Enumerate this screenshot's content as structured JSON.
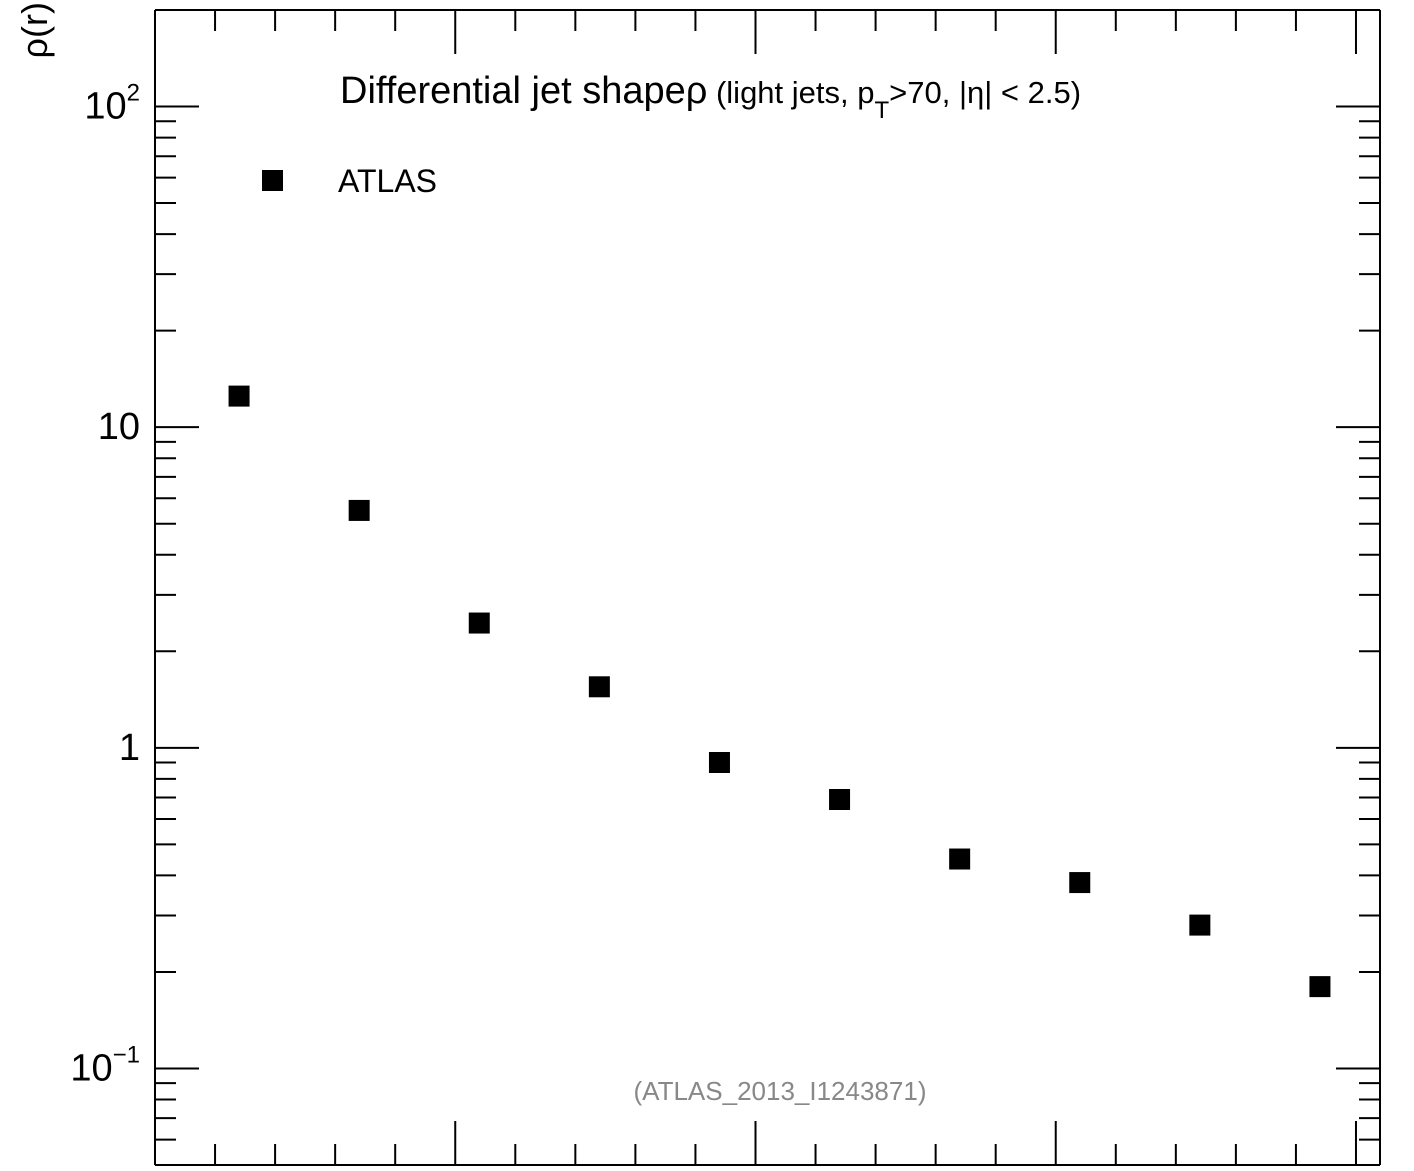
{
  "chart_data": {
    "type": "scatter",
    "title": {
      "main": "Differential jet shape",
      "rho": "ρ",
      "details_before": " (light jets, p",
      "details_sub": "T",
      "details_after": ">70, |η| < 2.5)"
    },
    "ylabel": "ρ(r)",
    "xlabel": "",
    "yscale": "log",
    "ylim": [
      0.05,
      200
    ],
    "xlim": [
      0,
      1.02
    ],
    "y_ticks": [
      {
        "value": 100,
        "base": "10",
        "exp": "2"
      },
      {
        "value": 10,
        "base": "10",
        "exp": ""
      },
      {
        "value": 1,
        "base": "1",
        "exp": ""
      },
      {
        "value": 0.1,
        "base": "10",
        "exp": "−1"
      }
    ],
    "legend_position": "top-left",
    "series": [
      {
        "name": "ATLAS",
        "color": "#000000",
        "marker": "square",
        "x": [
          0.07,
          0.17,
          0.27,
          0.37,
          0.47,
          0.57,
          0.67,
          0.77,
          0.87,
          0.97
        ],
        "y": [
          12.5,
          5.5,
          2.45,
          1.55,
          0.9,
          0.69,
          0.45,
          0.38,
          0.28,
          0.18
        ]
      }
    ],
    "annotation": "(ATLAS_2013_I1243871)"
  }
}
